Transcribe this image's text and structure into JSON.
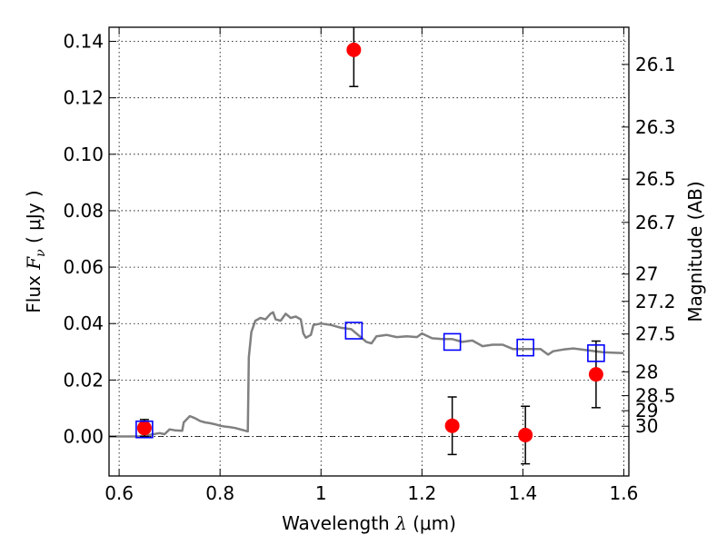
{
  "chart_data": {
    "type": "scatter",
    "xlabel": {
      "prefix": "Wavelength",
      "var": "λ",
      "unit": "(μm)"
    },
    "ylabel": {
      "prefix": "Flux",
      "var": "F",
      "sub": "ν",
      "unit": "( μJy )"
    },
    "y2label": "Magnitude (AB)",
    "xlim": [
      0.58,
      1.61
    ],
    "ylim": [
      -0.014,
      0.145
    ],
    "grid": true,
    "x_ticks": [
      0.6,
      0.8,
      1.0,
      1.2,
      1.4,
      1.6
    ],
    "x_tick_labels": [
      "0.6",
      "0.8",
      "1",
      "1.2",
      "1.4",
      "1.6"
    ],
    "y_ticks": [
      0.0,
      0.02,
      0.04,
      0.06,
      0.08,
      0.1,
      0.12,
      0.14
    ],
    "y_tick_labels": [
      "0.00",
      "0.02",
      "0.04",
      "0.06",
      "0.08",
      "0.10",
      "0.12",
      "0.14"
    ],
    "mag_ticks": [
      26.1,
      26.3,
      26.5,
      26.7,
      27,
      27.2,
      27.5,
      28,
      28.5,
      29,
      30
    ],
    "mag_tick_labels": [
      "26.1",
      "26.3",
      "26.5",
      "26.7",
      "27",
      "27.2",
      "27.5",
      "28",
      "28.5",
      "29",
      "30"
    ],
    "observed": [
      {
        "x": 0.65,
        "y": 0.003,
        "err": 0.003
      },
      {
        "x": 1.065,
        "y": 0.137,
        "err": 0.013
      },
      {
        "x": 1.26,
        "y": 0.0038,
        "err": 0.0102
      },
      {
        "x": 1.405,
        "y": 0.0005,
        "err": 0.0102
      },
      {
        "x": 1.545,
        "y": 0.022,
        "err": 0.0118
      }
    ],
    "model_bands": [
      {
        "x": 0.65,
        "y": 0.0025
      },
      {
        "x": 1.065,
        "y": 0.0375
      },
      {
        "x": 1.26,
        "y": 0.0335
      },
      {
        "x": 1.405,
        "y": 0.0315
      },
      {
        "x": 1.545,
        "y": 0.0295
      }
    ],
    "sed_model": [
      [
        0.58,
        0.0
      ],
      [
        0.6,
        0.0
      ],
      [
        0.64,
        0.0
      ],
      [
        0.66,
        0.0005
      ],
      [
        0.68,
        0.0012
      ],
      [
        0.69,
        0.0008
      ],
      [
        0.7,
        0.0025
      ],
      [
        0.71,
        0.0022
      ],
      [
        0.725,
        0.002
      ],
      [
        0.728,
        0.005
      ],
      [
        0.74,
        0.0072
      ],
      [
        0.75,
        0.0065
      ],
      [
        0.76,
        0.0055
      ],
      [
        0.77,
        0.005
      ],
      [
        0.78,
        0.0047
      ],
      [
        0.79,
        0.0043
      ],
      [
        0.8,
        0.0038
      ],
      [
        0.81,
        0.0035
      ],
      [
        0.82,
        0.0033
      ],
      [
        0.83,
        0.003
      ],
      [
        0.84,
        0.0025
      ],
      [
        0.855,
        0.0018
      ],
      [
        0.857,
        0.028
      ],
      [
        0.862,
        0.037
      ],
      [
        0.87,
        0.041
      ],
      [
        0.88,
        0.042
      ],
      [
        0.89,
        0.0415
      ],
      [
        0.9,
        0.0435
      ],
      [
        0.905,
        0.044
      ],
      [
        0.91,
        0.0415
      ],
      [
        0.92,
        0.041
      ],
      [
        0.93,
        0.0435
      ],
      [
        0.94,
        0.042
      ],
      [
        0.95,
        0.0425
      ],
      [
        0.96,
        0.0415
      ],
      [
        0.965,
        0.0365
      ],
      [
        0.97,
        0.035
      ],
      [
        0.975,
        0.0355
      ],
      [
        0.98,
        0.036
      ],
      [
        0.985,
        0.0395
      ],
      [
        1.0,
        0.04
      ],
      [
        1.02,
        0.0395
      ],
      [
        1.04,
        0.0385
      ],
      [
        1.06,
        0.038
      ],
      [
        1.08,
        0.035
      ],
      [
        1.09,
        0.0335
      ],
      [
        1.1,
        0.033
      ],
      [
        1.11,
        0.0355
      ],
      [
        1.13,
        0.036
      ],
      [
        1.15,
        0.0352
      ],
      [
        1.17,
        0.0355
      ],
      [
        1.19,
        0.0352
      ],
      [
        1.2,
        0.0365
      ],
      [
        1.22,
        0.0348
      ],
      [
        1.24,
        0.0345
      ],
      [
        1.26,
        0.0345
      ],
      [
        1.28,
        0.0335
      ],
      [
        1.3,
        0.034
      ],
      [
        1.32,
        0.032
      ],
      [
        1.34,
        0.0325
      ],
      [
        1.36,
        0.0325
      ],
      [
        1.38,
        0.031
      ],
      [
        1.4,
        0.031
      ],
      [
        1.42,
        0.031
      ],
      [
        1.435,
        0.031
      ],
      [
        1.45,
        0.029
      ],
      [
        1.46,
        0.0302
      ],
      [
        1.48,
        0.0308
      ],
      [
        1.5,
        0.0312
      ],
      [
        1.53,
        0.0305
      ],
      [
        1.56,
        0.0298
      ],
      [
        1.6,
        0.0295
      ]
    ],
    "colors": {
      "observed": "#ff0000",
      "model_band": "#0000ff",
      "sed": "#808080",
      "errorbar": "#000000",
      "grid": "#000000"
    }
  }
}
